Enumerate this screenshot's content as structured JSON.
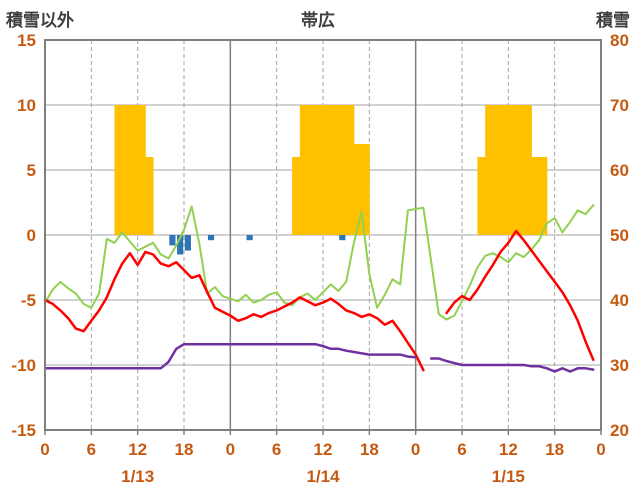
{
  "header": {
    "left_axis_title": "積雪以外",
    "title": "帯広",
    "right_axis_title": "積雪"
  },
  "chart_data": {
    "type": "mixed",
    "title": "帯広",
    "hours": 72,
    "x_tick_labels": [
      "0",
      "6",
      "12",
      "18",
      "0",
      "6",
      "12",
      "18",
      "0",
      "6",
      "12",
      "18",
      "0"
    ],
    "day_labels": [
      "1/13",
      "1/14",
      "1/15"
    ],
    "left_axis": {
      "title": "積雪以外",
      "min": -15,
      "max": 15,
      "step": 5,
      "ticks": [
        15,
        10,
        5,
        0,
        -5,
        -10,
        -15
      ]
    },
    "right_axis": {
      "title": "積雪",
      "min": 20,
      "max": 80,
      "step": 10,
      "ticks": [
        80,
        70,
        60,
        50,
        40,
        30,
        20
      ]
    },
    "grid": {
      "h_lines": [
        10,
        5,
        0,
        -5,
        -10
      ],
      "v_dashed_every_hours": 6,
      "v_solid_at_day_boundaries": true
    },
    "colors": {
      "grid": "#a6a6a6",
      "frame": "#7f7f7f",
      "tick_text": "#c55a11",
      "title_text": "#3f3f3f",
      "sunshine": "#ffc000",
      "precipitation": "#2e75b6",
      "temperature": "#ff0000",
      "green_line": "#92d050",
      "snow_depth": "#7030a0"
    },
    "series": {
      "sunshine": {
        "type": "bar",
        "axis": "left",
        "color": "#ffc000",
        "points": [
          [
            9,
            10
          ],
          [
            10,
            10
          ],
          [
            11,
            10
          ],
          [
            12,
            10
          ],
          [
            13,
            6
          ],
          [
            32,
            6
          ],
          [
            33,
            10
          ],
          [
            34,
            10
          ],
          [
            35,
            10
          ],
          [
            36,
            10
          ],
          [
            37,
            10
          ],
          [
            38,
            10
          ],
          [
            39,
            10
          ],
          [
            40,
            7
          ],
          [
            41,
            7
          ],
          [
            56,
            6
          ],
          [
            57,
            10
          ],
          [
            58,
            10
          ],
          [
            59,
            10
          ],
          [
            60,
            10
          ],
          [
            61,
            10
          ],
          [
            62,
            10
          ],
          [
            63,
            6
          ],
          [
            64,
            6
          ]
        ]
      },
      "precipitation": {
        "type": "bar-down",
        "axis": "left",
        "color": "#2e75b6",
        "points": [
          [
            16,
            0.8
          ],
          [
            17,
            1.5
          ],
          [
            18,
            1.2
          ],
          [
            21,
            0.4
          ],
          [
            26,
            0.4
          ],
          [
            38,
            0.4
          ]
        ]
      },
      "temperature": {
        "type": "line",
        "axis": "left",
        "color": "#ff0000",
        "width": 2.5,
        "values": [
          -5.0,
          -5.3,
          -5.8,
          -6.4,
          -7.2,
          -7.4,
          -6.6,
          -5.8,
          -4.8,
          -3.4,
          -2.2,
          -1.4,
          -2.3,
          -1.3,
          -1.5,
          -2.2,
          -2.4,
          -2.1,
          -2.7,
          -3.3,
          -3.1,
          -4.4,
          -5.6,
          -5.9,
          -6.2,
          -6.6,
          -6.4,
          -6.1,
          -6.3,
          -6.0,
          -5.8,
          -5.5,
          -5.2,
          -4.8,
          -5.1,
          -5.4,
          -5.2,
          -4.9,
          -5.3,
          -5.8,
          -6.0,
          -6.3,
          -6.1,
          -6.4,
          -6.9,
          -6.6,
          -7.4,
          -8.3,
          -9.2,
          -10.4,
          null,
          null,
          -6.0,
          -5.2,
          -4.7,
          -5.0,
          -4.2,
          -3.2,
          -2.3,
          -1.3,
          -0.6,
          0.3,
          -0.4,
          -1.2,
          -2.0,
          -2.8,
          -3.6,
          -4.4,
          -5.4,
          -6.6,
          -8.2,
          -9.6
        ]
      },
      "green": {
        "type": "line",
        "axis": "left",
        "color": "#92d050",
        "width": 2,
        "values": [
          -5.2,
          -4.2,
          -3.6,
          -4.1,
          -4.5,
          -5.3,
          -5.6,
          -4.5,
          -0.3,
          -0.6,
          0.2,
          -0.5,
          -1.2,
          -0.9,
          -0.6,
          -1.5,
          -1.8,
          -0.8,
          0.4,
          2.2,
          -0.7,
          -4.5,
          -4.0,
          -4.7,
          -4.9,
          -5.1,
          -4.6,
          -5.2,
          -5.0,
          -4.6,
          -4.4,
          -5.2,
          -5.4,
          -4.8,
          -4.5,
          -5.0,
          -4.4,
          -3.8,
          -4.3,
          -3.6,
          -0.6,
          1.8,
          -3.0,
          -5.6,
          -4.6,
          -3.4,
          -3.8,
          1.9,
          2.0,
          2.1,
          -2.0,
          -6.1,
          -6.5,
          -6.2,
          -5.1,
          -3.9,
          -2.5,
          -1.6,
          -1.4,
          -1.7,
          -2.1,
          -1.4,
          -1.7,
          -1.1,
          -0.4,
          0.9,
          1.3,
          0.2,
          1.0,
          1.9,
          1.6,
          2.3
        ]
      },
      "snow_depth": {
        "type": "line",
        "axis": "right",
        "color": "#7030a0",
        "width": 2.5,
        "values": [
          29.5,
          29.5,
          29.5,
          29.5,
          29.5,
          29.5,
          29.5,
          29.5,
          29.5,
          29.5,
          29.5,
          29.5,
          29.5,
          29.5,
          29.5,
          29.5,
          30.5,
          32.5,
          33.2,
          33.2,
          33.2,
          33.2,
          33.2,
          33.2,
          33.2,
          33.2,
          33.2,
          33.2,
          33.2,
          33.2,
          33.2,
          33.2,
          33.2,
          33.2,
          33.2,
          33.2,
          32.9,
          32.5,
          32.5,
          32.2,
          32.0,
          31.8,
          31.6,
          31.6,
          31.6,
          31.6,
          31.6,
          31.3,
          31.2,
          null,
          31.0,
          31.0,
          30.6,
          30.3,
          30.0,
          30.0,
          30.0,
          30.0,
          30.0,
          30.0,
          30.0,
          30.0,
          30.0,
          29.8,
          29.8,
          29.5,
          29.0,
          29.5,
          29.0,
          29.5,
          29.5,
          29.3
        ]
      }
    }
  }
}
